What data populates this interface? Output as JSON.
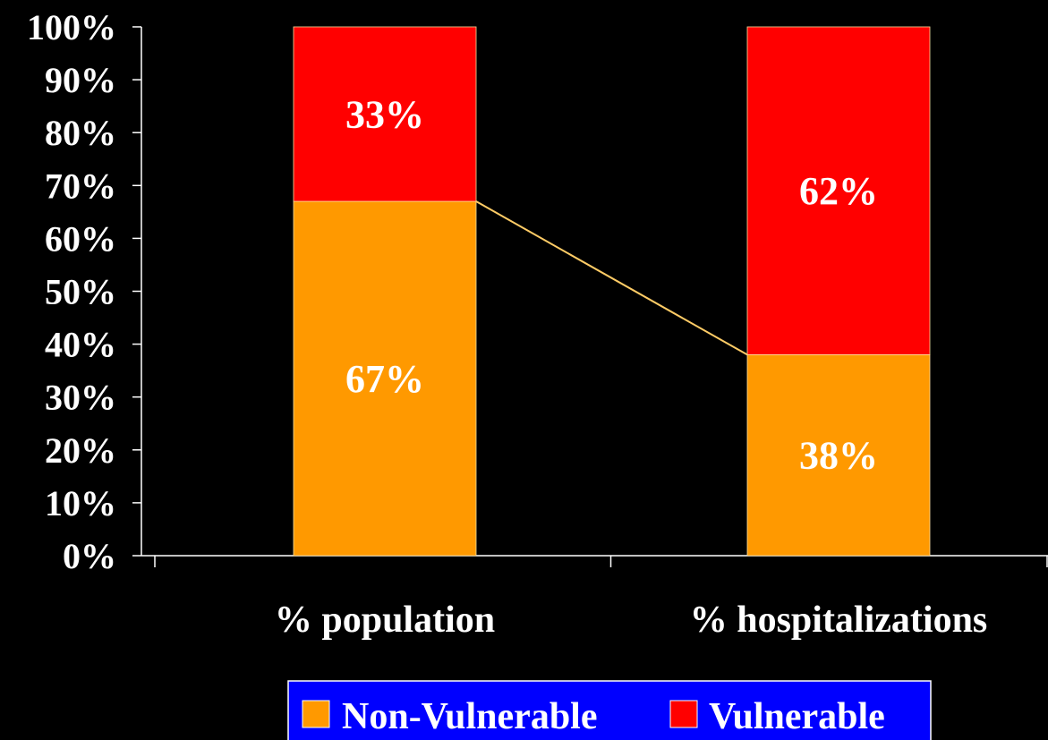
{
  "chart_data": {
    "type": "bar",
    "stacked": true,
    "categories": [
      "% population",
      "% hospitalizations"
    ],
    "series": [
      {
        "name": "Non-Vulnerable",
        "values": [
          67,
          38
        ],
        "labels": [
          "67%",
          "38%"
        ],
        "color": "#ff9900"
      },
      {
        "name": "Vulnerable",
        "values": [
          33,
          62
        ],
        "labels": [
          "33%",
          "62%"
        ],
        "color": "#ff0000"
      }
    ],
    "ylim": [
      0,
      100
    ],
    "yticks": [
      0,
      10,
      20,
      30,
      40,
      50,
      60,
      70,
      80,
      90,
      100
    ],
    "ytick_labels": [
      "0%",
      "10%",
      "20%",
      "30%",
      "40%",
      "50%",
      "60%",
      "70%",
      "80%",
      "90%",
      "100%"
    ],
    "series_line": true,
    "grid": false,
    "legend_position": "bottom",
    "colors": {
      "background": "#000000",
      "text": "#ffffff",
      "axis": "#ffffff",
      "legend_background": "#0000ff",
      "legend_border": "#ffffff",
      "series_line": "#ffcc66"
    }
  }
}
